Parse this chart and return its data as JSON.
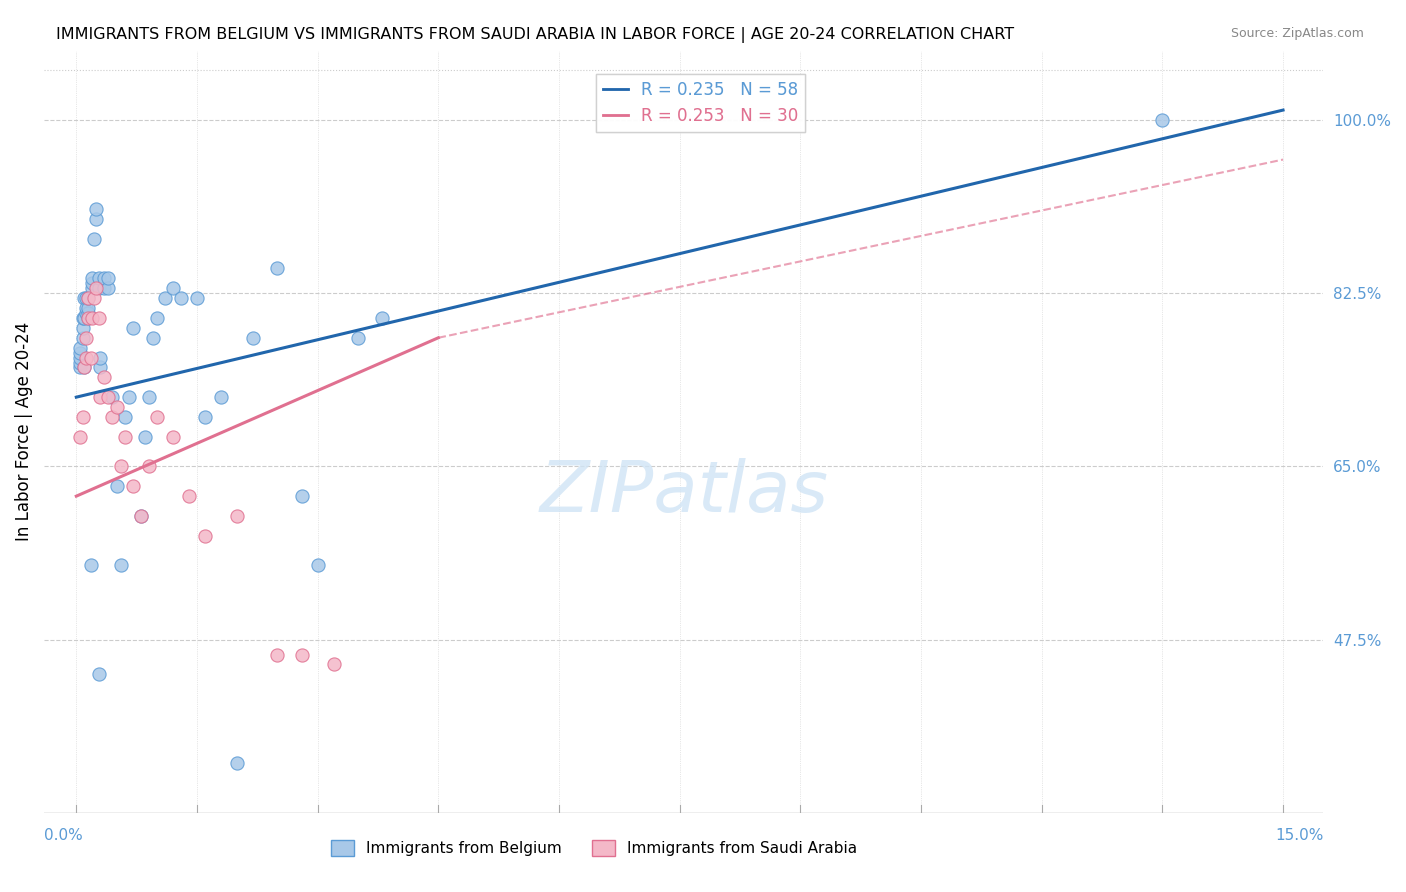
{
  "title": "IMMIGRANTS FROM BELGIUM VS IMMIGRANTS FROM SAUDI ARABIA IN LABOR FORCE | AGE 20-24 CORRELATION CHART",
  "source": "Source: ZipAtlas.com",
  "ylabel": "In Labor Force | Age 20-24",
  "blue_scatter_color": "#a8c8e8",
  "blue_scatter_edge": "#5b9bd5",
  "pink_scatter_color": "#f4b8c8",
  "pink_scatter_edge": "#e07090",
  "blue_line_color": "#2166ac",
  "pink_line_color": "#e07090",
  "watermark_color": "#d0e4f5",
  "right_tick_color": "#5b9bd5",
  "xmin": 0.0,
  "xmax": 15.0,
  "ymin": 30.0,
  "ymax": 105.0,
  "blue_line_x0": 0.0,
  "blue_line_y0": 72.0,
  "blue_line_x1": 15.0,
  "blue_line_y1": 101.0,
  "pink_solid_x0": 0.0,
  "pink_solid_y0": 62.0,
  "pink_solid_x1": 4.5,
  "pink_solid_y1": 78.0,
  "pink_dash_x0": 4.5,
  "pink_dash_y0": 78.0,
  "pink_dash_x1": 15.0,
  "pink_dash_y1": 96.0,
  "belgium_x": [
    0.05,
    0.05,
    0.05,
    0.05,
    0.05,
    0.08,
    0.08,
    0.08,
    0.1,
    0.1,
    0.1,
    0.12,
    0.12,
    0.12,
    0.15,
    0.15,
    0.15,
    0.15,
    0.2,
    0.2,
    0.2,
    0.22,
    0.25,
    0.25,
    0.28,
    0.28,
    0.3,
    0.3,
    0.35,
    0.35,
    0.4,
    0.4,
    0.45,
    0.5,
    0.55,
    0.6,
    0.65,
    0.7,
    0.8,
    0.85,
    0.9,
    0.95,
    1.0,
    1.1,
    1.2,
    1.3,
    1.5,
    1.6,
    1.8,
    2.0,
    2.2,
    2.5,
    2.8,
    3.0,
    3.5,
    3.8,
    13.5,
    0.18,
    0.28
  ],
  "belgium_y": [
    75.0,
    75.5,
    76.0,
    76.5,
    77.0,
    78.0,
    79.0,
    80.0,
    75.0,
    80.0,
    82.0,
    80.5,
    81.0,
    82.0,
    80.0,
    80.5,
    81.0,
    82.0,
    83.0,
    83.5,
    84.0,
    88.0,
    90.0,
    91.0,
    83.0,
    84.0,
    75.0,
    76.0,
    83.0,
    84.0,
    83.0,
    84.0,
    72.0,
    63.0,
    55.0,
    70.0,
    72.0,
    79.0,
    60.0,
    68.0,
    72.0,
    78.0,
    80.0,
    82.0,
    83.0,
    82.0,
    82.0,
    70.0,
    72.0,
    35.0,
    78.0,
    85.0,
    62.0,
    55.0,
    78.0,
    80.0,
    100.0,
    55.0,
    44.0
  ],
  "saudi_x": [
    0.05,
    0.08,
    0.1,
    0.12,
    0.12,
    0.15,
    0.15,
    0.18,
    0.2,
    0.22,
    0.25,
    0.28,
    0.3,
    0.35,
    0.4,
    0.45,
    0.5,
    0.55,
    0.6,
    0.7,
    0.8,
    0.9,
    1.0,
    1.2,
    1.4,
    1.6,
    2.0,
    2.5,
    2.8,
    3.2
  ],
  "saudi_y": [
    68.0,
    70.0,
    75.0,
    76.0,
    78.0,
    80.0,
    82.0,
    76.0,
    80.0,
    82.0,
    83.0,
    80.0,
    72.0,
    74.0,
    72.0,
    70.0,
    71.0,
    65.0,
    68.0,
    63.0,
    60.0,
    65.0,
    70.0,
    68.0,
    62.0,
    58.0,
    60.0,
    46.0,
    46.0,
    45.0
  ]
}
